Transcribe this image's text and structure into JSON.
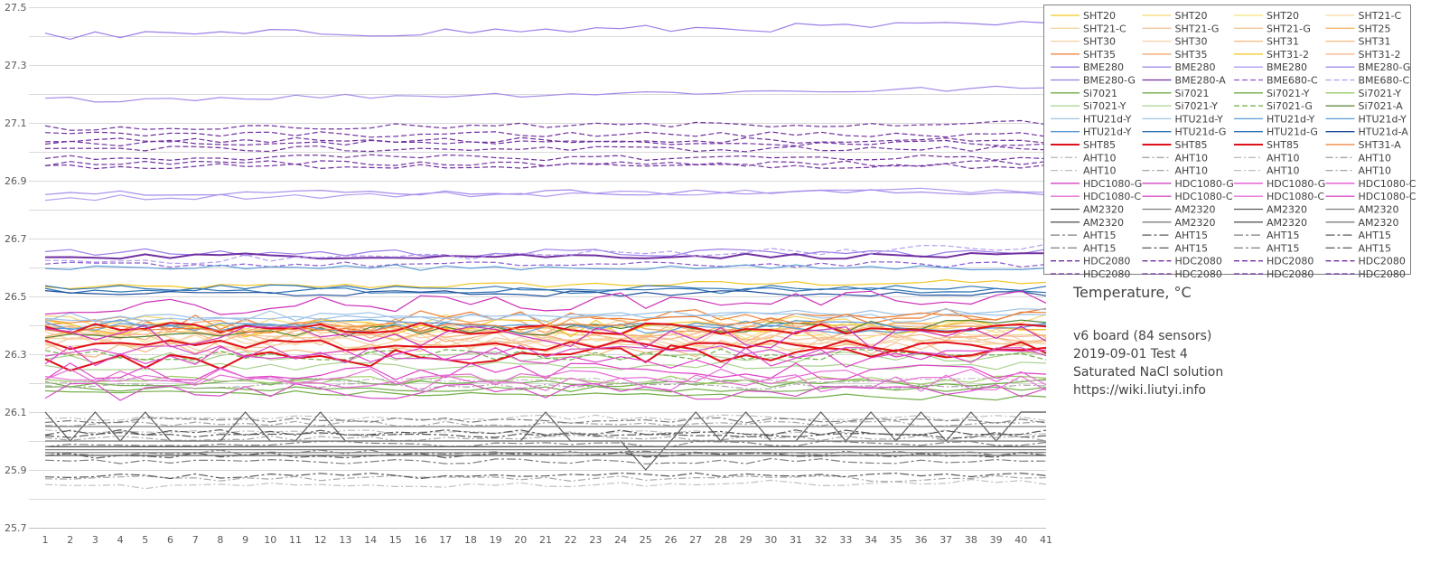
{
  "chart_data": {
    "type": "line",
    "title": "Temperature, °C",
    "x": [
      1,
      2,
      3,
      4,
      5,
      6,
      7,
      8,
      9,
      10,
      11,
      12,
      13,
      14,
      15,
      16,
      17,
      18,
      19,
      20,
      21,
      22,
      23,
      24,
      25,
      26,
      27,
      28,
      29,
      30,
      31,
      32,
      33,
      34,
      35,
      36,
      37,
      38,
      39,
      40,
      41
    ],
    "ylim": [
      25.7,
      27.5
    ],
    "yticks": [
      "25.7",
      "25.9",
      "26.1",
      "26.3",
      "26.5",
      "26.7",
      "26.9",
      "27.1",
      "27.3",
      "27.5"
    ],
    "grid": true,
    "legend_position": "top-right",
    "legend_entries": [
      "SHT20",
      "SHT20",
      "SHT20",
      "SHT21-C",
      "SHT21-C",
      "SHT21-G",
      "SHT21-G",
      "SHT25",
      "SHT30",
      "SHT30",
      "SHT31",
      "SHT31",
      "SHT35",
      "SHT35",
      "SHT31-2",
      "SHT31-2",
      "BME280",
      "BME280",
      "BME280",
      "BME280-G",
      "BME280-G",
      "BME280-A",
      "BME680-C",
      "BME680-C",
      "Si7021",
      "Si7021",
      "Si7021-Y",
      "Si7021-Y",
      "Si7021-Y",
      "Si7021-Y",
      "Si7021-G",
      "Si7021-A",
      "HTU21d-Y",
      "HTU21d-Y",
      "HTU21d-Y",
      "HTU21d-Y",
      "HTU21d-Y",
      "HTU21d-G",
      "HTU21d-G",
      "HTU21d-A",
      "SHT85",
      "SHT85",
      "SHT85",
      "SHT31-A",
      "AHT10",
      "AHT10",
      "AHT10",
      "AHT10",
      "AHT10",
      "AHT10",
      "AHT10",
      "AHT10",
      "HDC1080-G",
      "HDC1080-G",
      "HDC1080-G",
      "HDC1080-C",
      "HDC1080-C",
      "HDC1080-C",
      "HDC1080-C",
      "HDC1080-C",
      "AM2320",
      "AM2320",
      "AM2320",
      "AM2320",
      "AM2320",
      "AM2320",
      "AM2320",
      "AM2320",
      "AHT15",
      "AHT15",
      "AHT15",
      "AHT15",
      "AHT15",
      "AHT15",
      "AHT15",
      "AHT15",
      "HDC2080",
      "HDC2080",
      "HDC2080",
      "HDC2080",
      "HDC2080",
      "HDC2080",
      "HDC2080",
      "HDC2080"
    ],
    "series_styles": [
      {
        "color": "#f3c623",
        "dash": "solid"
      },
      {
        "color": "#f5d76e",
        "dash": "solid"
      },
      {
        "color": "#f7e27a",
        "dash": "solid"
      },
      {
        "color": "#f6d7a0",
        "dash": "solid"
      },
      {
        "color": "#f6d7a0",
        "dash": "solid"
      },
      {
        "color": "#f2c79a",
        "dash": "solid"
      },
      {
        "color": "#f2c79a",
        "dash": "solid"
      },
      {
        "color": "#f5b971",
        "dash": "solid"
      },
      {
        "color": "#f6cfa6",
        "dash": "solid"
      },
      {
        "color": "#f6cfa6",
        "dash": "solid"
      },
      {
        "color": "#f4b880",
        "dash": "solid"
      },
      {
        "color": "#f4b880",
        "dash": "solid"
      },
      {
        "color": "#ed7d31",
        "dash": "solid"
      },
      {
        "color": "#f0a062",
        "dash": "solid"
      },
      {
        "color": "#f3c623",
        "dash": "solid"
      },
      {
        "color": "#f4b183",
        "dash": "solid"
      },
      {
        "color": "#9b7ee8",
        "dash": "solid"
      },
      {
        "color": "#a48be9",
        "dash": "solid"
      },
      {
        "color": "#b39cf0",
        "dash": "solid"
      },
      {
        "color": "#a48be9",
        "dash": "solid"
      },
      {
        "color": "#9b7ee8",
        "dash": "solid"
      },
      {
        "color": "#7030a0",
        "dash": "solid"
      },
      {
        "color": "#8a5bd0",
        "dash": "dash"
      },
      {
        "color": "#b39cf0",
        "dash": "dash"
      },
      {
        "color": "#70ad47",
        "dash": "solid"
      },
      {
        "color": "#70ad47",
        "dash": "solid"
      },
      {
        "color": "#70ad47",
        "dash": "solid"
      },
      {
        "color": "#9ccc65",
        "dash": "solid"
      },
      {
        "color": "#a9d18e",
        "dash": "solid"
      },
      {
        "color": "#a9d18e",
        "dash": "solid"
      },
      {
        "color": "#70ad47",
        "dash": "dash"
      },
      {
        "color": "#548235",
        "dash": "solid"
      },
      {
        "color": "#9dc3e6",
        "dash": "solid"
      },
      {
        "color": "#9dc3e6",
        "dash": "solid"
      },
      {
        "color": "#5b9bd5",
        "dash": "solid"
      },
      {
        "color": "#5b9bd5",
        "dash": "solid"
      },
      {
        "color": "#5b9bd5",
        "dash": "solid"
      },
      {
        "color": "#2e75b6",
        "dash": "solid"
      },
      {
        "color": "#2e75b6",
        "dash": "solid"
      },
      {
        "color": "#1f4e9a",
        "dash": "solid"
      },
      {
        "color": "#e0101a",
        "dash": "solid"
      },
      {
        "color": "#e0101a",
        "dash": "solid"
      },
      {
        "color": "#e0101a",
        "dash": "solid"
      },
      {
        "color": "#ed7d31",
        "dash": "solid"
      },
      {
        "color": "#bfbfbf",
        "dash": "dashdot"
      },
      {
        "color": "#a6a6a6",
        "dash": "dashdot"
      },
      {
        "color": "#bfbfbf",
        "dash": "dashdot"
      },
      {
        "color": "#a6a6a6",
        "dash": "dashdot"
      },
      {
        "color": "#bfbfbf",
        "dash": "dashdot"
      },
      {
        "color": "#a6a6a6",
        "dash": "dashdot"
      },
      {
        "color": "#bfbfbf",
        "dash": "dashdot"
      },
      {
        "color": "#a6a6a6",
        "dash": "dashdot"
      },
      {
        "color": "#cc2fb8",
        "dash": "solid"
      },
      {
        "color": "#cc2fb8",
        "dash": "solid"
      },
      {
        "color": "#e040c8",
        "dash": "solid"
      },
      {
        "color": "#e040c8",
        "dash": "solid"
      },
      {
        "color": "#e66fd5",
        "dash": "solid"
      },
      {
        "color": "#d44fc6",
        "dash": "solid"
      },
      {
        "color": "#e66fd5",
        "dash": "solid"
      },
      {
        "color": "#d44fc6",
        "dash": "solid"
      },
      {
        "color": "#595959",
        "dash": "solid"
      },
      {
        "color": "#7f7f7f",
        "dash": "solid"
      },
      {
        "color": "#595959",
        "dash": "solid"
      },
      {
        "color": "#7f7f7f",
        "dash": "solid"
      },
      {
        "color": "#595959",
        "dash": "solid"
      },
      {
        "color": "#7f7f7f",
        "dash": "solid"
      },
      {
        "color": "#595959",
        "dash": "solid"
      },
      {
        "color": "#7f7f7f",
        "dash": "solid"
      },
      {
        "color": "#7f7f7f",
        "dash": "dashdot2"
      },
      {
        "color": "#595959",
        "dash": "dashdot2"
      },
      {
        "color": "#7f7f7f",
        "dash": "dashdot2"
      },
      {
        "color": "#595959",
        "dash": "dashdot2"
      },
      {
        "color": "#7f7f7f",
        "dash": "dashdot2"
      },
      {
        "color": "#595959",
        "dash": "dashdot2"
      },
      {
        "color": "#7f7f7f",
        "dash": "dashdot2"
      },
      {
        "color": "#595959",
        "dash": "dashdot2"
      },
      {
        "color": "#7030a0",
        "dash": "dash"
      },
      {
        "color": "#7030a0",
        "dash": "dash"
      },
      {
        "color": "#7030a0",
        "dash": "dash"
      },
      {
        "color": "#7030a0",
        "dash": "dash"
      },
      {
        "color": "#7030a0",
        "dash": "dash"
      },
      {
        "color": "#7030a0",
        "dash": "dash"
      },
      {
        "color": "#7030a0",
        "dash": "dash"
      },
      {
        "color": "#7030a0",
        "dash": "dash"
      }
    ],
    "series_bases": [
      26.53,
      26.41,
      26.37,
      26.39,
      26.34,
      26.33,
      26.35,
      26.38,
      26.36,
      26.36,
      26.37,
      26.32,
      26.41,
      26.4,
      26.39,
      26.37,
      27.4,
      27.18,
      26.84,
      26.86,
      26.65,
      26.64,
      26.61,
      26.62,
      26.17,
      26.18,
      26.2,
      26.21,
      26.26,
      26.29,
      26.3,
      26.37,
      26.42,
      26.43,
      26.39,
      26.4,
      26.6,
      26.53,
      26.52,
      26.51,
      26.39,
      26.33,
      26.27,
      26.38,
      26.21,
      26.19,
      26.08,
      26.06,
      26.03,
      26.01,
      25.84,
      25.87,
      26.46,
      26.36,
      26.29,
      26.24,
      26.2,
      26.17,
      26.22,
      26.3,
      26.1,
      26.05,
      25.98,
      25.96,
      25.95,
      26.0,
      25.98,
      25.97,
      26.07,
      26.02,
      25.96,
      25.95,
      25.93,
      25.88,
      25.99,
      26.03,
      27.08,
      27.06,
      27.04,
      27.03,
      27.01,
      26.98,
      26.96,
      26.95
    ],
    "series_trends": [
      0.02,
      0.0,
      0.0,
      0.0,
      0.0,
      0.0,
      0.0,
      0.0,
      0.0,
      0.0,
      0.0,
      0.0,
      0.03,
      0.0,
      0.0,
      0.0,
      0.04,
      0.04,
      0.03,
      0.0,
      0.0,
      0.0,
      0.0,
      0.05,
      -0.02,
      0.0,
      0.0,
      0.0,
      0.0,
      0.0,
      0.0,
      0.03,
      0.03,
      0.0,
      0.0,
      0.0,
      0.0,
      0.0,
      0.0,
      0.0,
      0.0,
      0.0,
      0.05,
      0.05,
      0.0,
      0.0,
      0.0,
      0.0,
      0.0,
      0.0,
      0.02,
      0.0,
      0.04,
      0.0,
      0.0,
      0.0,
      0.0,
      0.0,
      0.0,
      0.0,
      0.0,
      0.0,
      0.0,
      0.0,
      0.0,
      0.0,
      0.0,
      0.0,
      0.0,
      0.0,
      0.0,
      0.0,
      0.0,
      0.0,
      0.0,
      0.0,
      0.02,
      0.0,
      0.0,
      0.0,
      0.0,
      0.0,
      0.0,
      0.0
    ],
    "series_noise": [
      0.01,
      0.03,
      0.03,
      0.03,
      0.03,
      0.03,
      0.03,
      0.03,
      0.03,
      0.03,
      0.03,
      0.03,
      0.03,
      0.03,
      0.03,
      0.03,
      0.015,
      0.01,
      0.01,
      0.01,
      0.015,
      0.01,
      0.01,
      0.015,
      0.01,
      0.01,
      0.015,
      0.015,
      0.015,
      0.02,
      0.02,
      0.02,
      0.01,
      0.02,
      0.02,
      0.02,
      0.01,
      0.01,
      0.01,
      0.01,
      0.02,
      0.02,
      0.03,
      0.02,
      0.01,
      0.01,
      0.01,
      0.01,
      0.01,
      0.01,
      0.01,
      0.01,
      0.03,
      0.04,
      0.04,
      0.03,
      0.03,
      0.03,
      0.03,
      0.03,
      0.0,
      0.0,
      0.0,
      0.0,
      0.0,
      0.0,
      0.0,
      0.0,
      0.01,
      0.01,
      0.01,
      0.01,
      0.01,
      0.01,
      0.01,
      0.01,
      0.01,
      0.01,
      0.01,
      0.01,
      0.01,
      0.01,
      0.01,
      0.01
    ],
    "am2320_zigzag": [
      26.1,
      26.0,
      26.1,
      26.0,
      26.1,
      26.0,
      26.0,
      26.0,
      26.1,
      26.0,
      26.0,
      26.1,
      26.0,
      26.0,
      26.0,
      26.0,
      26.0,
      26.0,
      26.0,
      26.0,
      26.1,
      26.0,
      26.0,
      26.0,
      25.9,
      26.0,
      26.1,
      26.0,
      26.1,
      26.0,
      26.0,
      26.1,
      26.0,
      26.1,
      26.0,
      26.1,
      26.0,
      26.1,
      26.0,
      26.1,
      26.1
    ]
  },
  "notes": {
    "title": "Temperature, °C",
    "line1": "v6 board (84 sensors)",
    "line2": "2019-09-01 Test 4",
    "line3": "Saturated NaCl solution",
    "line4": "https://wiki.liutyi.info"
  }
}
